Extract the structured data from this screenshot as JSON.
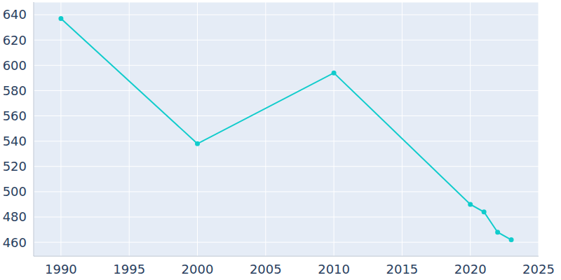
{
  "chart_data": {
    "type": "line",
    "x": [
      1990,
      2000,
      2010,
      2020,
      2021,
      2022,
      2023
    ],
    "values": [
      637,
      538,
      594,
      490,
      484,
      468,
      462
    ],
    "color": "#11cccc",
    "marker": "circle",
    "xlim": [
      1988,
      2025
    ],
    "ylim": [
      449,
      650
    ],
    "xticks": [
      1990,
      1995,
      2000,
      2005,
      2010,
      2015,
      2020,
      2025
    ],
    "yticks": [
      460,
      480,
      500,
      520,
      540,
      560,
      580,
      600,
      620,
      640
    ],
    "grid": true
  }
}
